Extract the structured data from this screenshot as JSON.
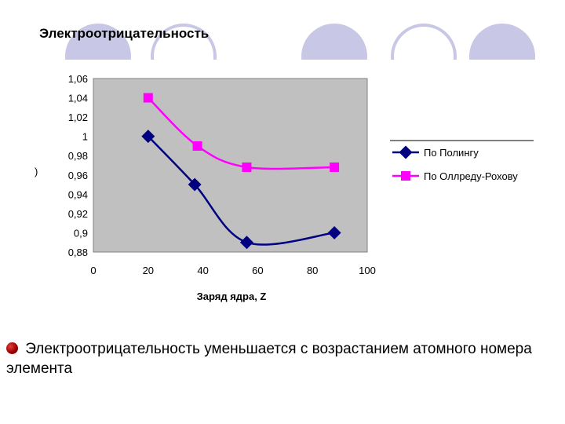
{
  "slide": {
    "title": "Электроотрицательность",
    "bullet_text": " Электроотрицательность уменьшается с возрастанием атомного номера элемента"
  },
  "colors": {
    "plot_background": "#c0c0c0",
    "series_pauling": "#000080",
    "series_allred": "#ff00ff",
    "decor_circle": "#c8c8e6",
    "bullet": "#c00000"
  },
  "chart_data": {
    "type": "line",
    "title": "",
    "xlabel": "Заряд ядра, Z",
    "ylabel": "",
    "y_axis_stray_glyph": ")",
    "xlim": [
      0,
      100
    ],
    "ylim": [
      0.88,
      1.06
    ],
    "x_ticks": [
      "0",
      "20",
      "40",
      "60",
      "80",
      "100"
    ],
    "y_ticks": [
      "1,06",
      "1,04",
      "1,02",
      "1",
      "0,98",
      "0,96",
      "0,94",
      "0,92",
      "0,9",
      "0,88"
    ],
    "grid": false,
    "legend_position": "right",
    "series": [
      {
        "name": "По Полингу",
        "marker": "diamond",
        "points": [
          [
            20,
            1.0
          ],
          [
            37,
            0.95
          ],
          [
            56,
            0.89
          ],
          [
            88,
            0.9
          ]
        ]
      },
      {
        "name": "По Оллреду-Рохову",
        "marker": "square",
        "points": [
          [
            20,
            1.04
          ],
          [
            38,
            0.99
          ],
          [
            56,
            0.968
          ],
          [
            88,
            0.968
          ]
        ]
      }
    ]
  }
}
